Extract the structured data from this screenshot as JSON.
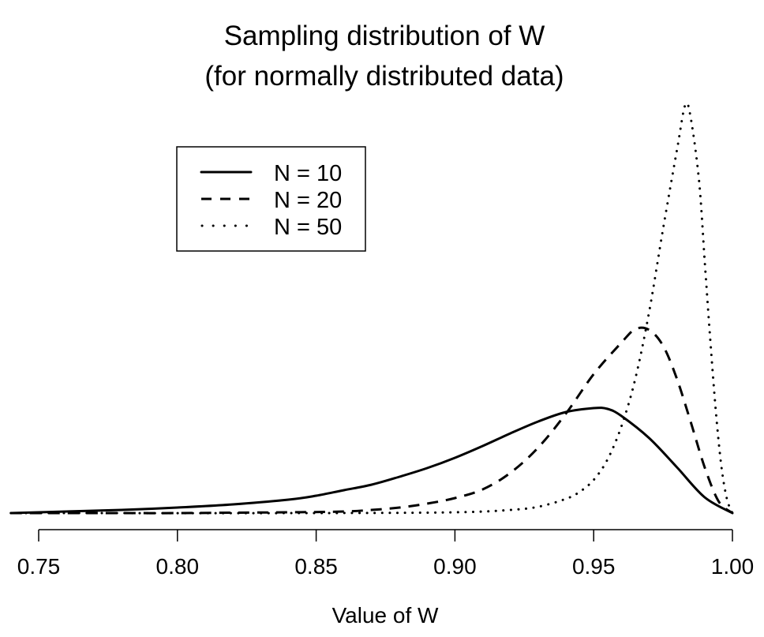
{
  "chart_data": {
    "type": "line",
    "title": "Sampling distribution of W",
    "subtitle": "(for normally distributed data)",
    "xlabel": "Value of W",
    "ylabel": "",
    "xlim": [
      0.74,
      1.0
    ],
    "ylim": [
      0,
      52
    ],
    "x_ticks": [
      0.75,
      0.8,
      0.85,
      0.9,
      0.95,
      1.0
    ],
    "x_tick_labels": [
      "0.75",
      "0.80",
      "0.85",
      "0.90",
      "0.95",
      "1.00"
    ],
    "y_axis_shown": false,
    "grid": false,
    "legend": {
      "placement": "top-left",
      "entries": [
        {
          "label": "N = 10",
          "linestyle": "solid"
        },
        {
          "label": "N = 20",
          "linestyle": "dashed"
        },
        {
          "label": "N = 50",
          "linestyle": "dotted"
        }
      ]
    },
    "series": [
      {
        "name": "N = 10",
        "linestyle": "solid",
        "x": [
          0.74,
          0.76,
          0.78,
          0.8,
          0.82,
          0.84,
          0.85,
          0.86,
          0.87,
          0.88,
          0.89,
          0.9,
          0.91,
          0.92,
          0.93,
          0.94,
          0.95,
          0.955,
          0.96,
          0.97,
          0.98,
          0.99,
          1.0
        ],
        "y": [
          0.0,
          0.2,
          0.4,
          0.7,
          1.1,
          1.7,
          2.2,
          2.9,
          3.6,
          4.6,
          5.7,
          7.0,
          8.5,
          10.1,
          11.6,
          12.8,
          13.3,
          13.2,
          12.3,
          9.5,
          5.8,
          2.0,
          0.0
        ]
      },
      {
        "name": "N = 20",
        "linestyle": "dashed",
        "x": [
          0.74,
          0.78,
          0.8,
          0.84,
          0.86,
          0.87,
          0.88,
          0.89,
          0.9,
          0.91,
          0.92,
          0.93,
          0.94,
          0.95,
          0.96,
          0.965,
          0.97,
          0.975,
          0.98,
          0.985,
          0.99,
          0.995,
          1.0
        ],
        "y": [
          0.0,
          0.0,
          0.0,
          0.1,
          0.2,
          0.4,
          0.7,
          1.2,
          1.9,
          3.0,
          5.1,
          8.3,
          12.6,
          17.6,
          21.6,
          23.3,
          23.2,
          21.2,
          17.0,
          11.5,
          5.8,
          1.5,
          0.0
        ]
      },
      {
        "name": "N = 50",
        "linestyle": "dotted",
        "x": [
          0.74,
          0.85,
          0.9,
          0.92,
          0.93,
          0.94,
          0.945,
          0.95,
          0.955,
          0.96,
          0.965,
          0.97,
          0.975,
          0.98,
          0.983,
          0.985,
          0.988,
          0.99,
          0.992,
          0.994,
          0.996,
          0.998,
          1.0
        ],
        "y": [
          0.0,
          0.0,
          0.1,
          0.4,
          0.8,
          1.8,
          2.7,
          4.2,
          6.8,
          11.0,
          17.0,
          25.5,
          36.0,
          46.0,
          51.7,
          50.0,
          42.0,
          32.0,
          22.0,
          13.0,
          6.0,
          1.8,
          0.0
        ]
      }
    ]
  }
}
